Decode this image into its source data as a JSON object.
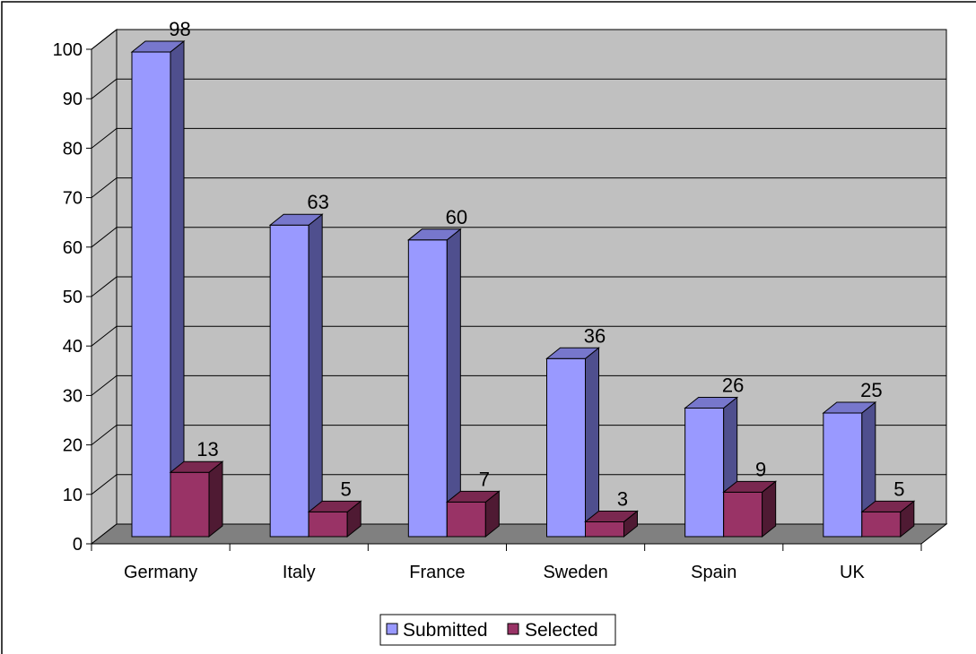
{
  "chart_data": {
    "type": "bar",
    "style": "3d-clustered-column",
    "categories": [
      "Germany",
      "Italy",
      "France",
      "Sweden",
      "Spain",
      "UK"
    ],
    "series": [
      {
        "name": "Submitted",
        "values": [
          98,
          63,
          60,
          36,
          26,
          25
        ],
        "color": "#9999ff"
      },
      {
        "name": "Selected",
        "values": [
          13,
          5,
          7,
          3,
          9,
          5
        ],
        "color": "#993366"
      }
    ],
    "ylim": [
      0,
      100
    ],
    "yticks": [
      0,
      10,
      20,
      30,
      40,
      50,
      60,
      70,
      80,
      90,
      100
    ],
    "grid": true,
    "legend": {
      "position": "bottom"
    },
    "data_labels": true
  },
  "colors": {
    "wall": "#c0c0c0",
    "floor": "#808080",
    "gridline": "#000000",
    "submitted_side": "#4f4f8e",
    "submitted_top": "#7777cc",
    "selected_side": "#4f1a33",
    "selected_top": "#7a2850"
  }
}
